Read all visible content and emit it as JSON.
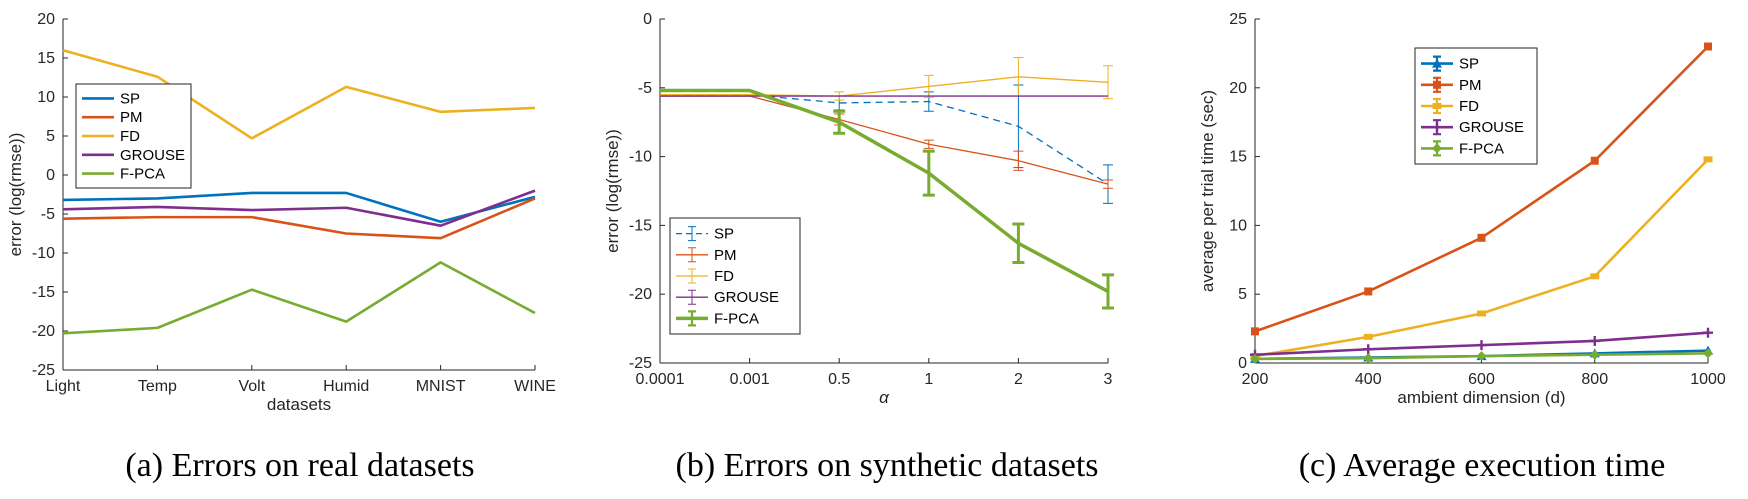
{
  "chart_data": [
    {
      "type": "line",
      "title": "",
      "caption": "(a) Errors on real datasets",
      "xlabel": "datasets",
      "ylabel": "error (log(rmse))",
      "categories": [
        "Light",
        "Temp",
        "Volt",
        "Humid",
        "MNIST",
        "WINE"
      ],
      "ylim": [
        -25,
        20
      ],
      "yticks": [
        -25,
        -20,
        -15,
        -10,
        -5,
        0,
        5,
        10,
        15,
        20
      ],
      "legend_position": "left-middle",
      "series": [
        {
          "name": "SP",
          "color": "#0072BD",
          "values": [
            -3.2,
            -3.0,
            -2.3,
            -2.3,
            -6.0,
            -2.8
          ]
        },
        {
          "name": "PM",
          "color": "#D95319",
          "values": [
            -5.6,
            -5.4,
            -5.4,
            -7.5,
            -8.1,
            -3.0
          ]
        },
        {
          "name": "FD",
          "color": "#EDB120",
          "values": [
            16.0,
            12.6,
            4.7,
            11.3,
            8.1,
            8.6
          ]
        },
        {
          "name": "GROUSE",
          "color": "#7E2F8E",
          "values": [
            -4.4,
            -4.1,
            -4.5,
            -4.2,
            -6.5,
            -2.0
          ]
        },
        {
          "name": "F-PCA",
          "color": "#77AC30",
          "values": [
            -20.3,
            -19.6,
            -14.7,
            -18.8,
            -11.2,
            -17.7
          ]
        }
      ]
    },
    {
      "type": "line",
      "title": "",
      "caption": "(b) Errors on synthetic datasets",
      "xlabel": "α",
      "ylabel": "error (log(rmse))",
      "categories": [
        "0.0001",
        "0.001",
        "0.5",
        "1",
        "2",
        "3"
      ],
      "ylim": [
        -25,
        0
      ],
      "yticks": [
        -25,
        -20,
        -15,
        -10,
        -5,
        0
      ],
      "legend_position": "bottom-left",
      "series": [
        {
          "name": "SP",
          "color": "#0072BD",
          "dashed": true,
          "values": [
            -5.5,
            -5.5,
            -6.1,
            -6.0,
            -7.8,
            -12.0
          ],
          "errors": [
            0,
            0,
            0.5,
            0.7,
            3.0,
            1.4
          ]
        },
        {
          "name": "PM",
          "color": "#D95319",
          "values": [
            -5.6,
            -5.6,
            -7.3,
            -9.1,
            -10.3,
            -12.0
          ],
          "errors": [
            0,
            0,
            0.4,
            0.3,
            0.7,
            0.3
          ]
        },
        {
          "name": "FD",
          "color": "#EDB120",
          "values": [
            -5.5,
            -5.5,
            -5.6,
            -4.9,
            -4.2,
            -4.6
          ],
          "errors": [
            0,
            0,
            0.3,
            0.8,
            1.4,
            1.2
          ]
        },
        {
          "name": "GROUSE",
          "color": "#7E2F8E",
          "values": [
            -5.6,
            -5.6,
            -5.6,
            -5.6,
            -5.6,
            -5.6
          ],
          "errors": [
            0,
            0,
            0,
            0,
            0,
            0
          ]
        },
        {
          "name": "F-PCA",
          "color": "#77AC30",
          "bold": true,
          "values": [
            -5.2,
            -5.2,
            -7.5,
            -11.2,
            -16.3,
            -19.8
          ],
          "errors": [
            0,
            0,
            0.8,
            1.6,
            1.4,
            1.2
          ]
        }
      ]
    },
    {
      "type": "line",
      "title": "",
      "caption": "(c) Average execution time",
      "xlabel": "ambient dimension (d)",
      "ylabel": "average per trial time (sec)",
      "x": [
        200,
        400,
        600,
        800,
        1000
      ],
      "xticks": [
        200,
        400,
        600,
        800,
        1000
      ],
      "ylim": [
        0,
        25
      ],
      "yticks": [
        0,
        5,
        10,
        15,
        20,
        25
      ],
      "legend_position": "top-middle",
      "series": [
        {
          "name": "SP",
          "color": "#0072BD",
          "values": [
            0.3,
            0.4,
            0.5,
            0.7,
            0.9
          ]
        },
        {
          "name": "PM",
          "color": "#D95319",
          "values": [
            2.3,
            5.2,
            9.1,
            14.7,
            23.0
          ]
        },
        {
          "name": "FD",
          "color": "#EDB120",
          "values": [
            0.5,
            1.9,
            3.6,
            6.3,
            14.8
          ]
        },
        {
          "name": "GROUSE",
          "color": "#7E2F8E",
          "values": [
            0.6,
            1.0,
            1.3,
            1.6,
            2.2
          ]
        },
        {
          "name": "F-PCA",
          "color": "#77AC30",
          "values": [
            0.3,
            0.35,
            0.5,
            0.6,
            0.7
          ]
        }
      ]
    }
  ]
}
